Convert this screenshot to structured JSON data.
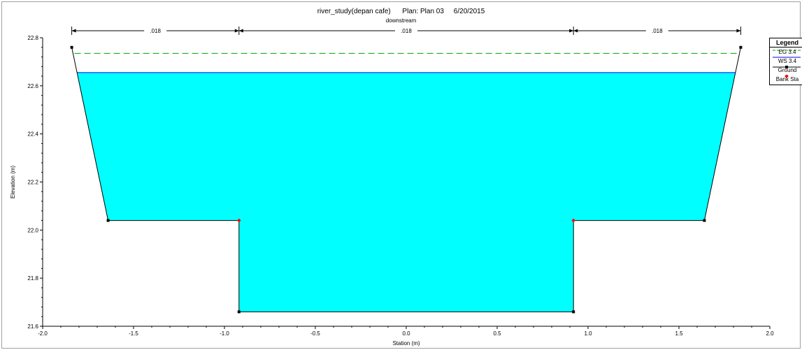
{
  "title_line": "river_study(depan cafe)      Plan: Plan 03     6/20/2015",
  "subtitle": "downstream",
  "chart_data": {
    "type": "line",
    "xlabel": "Station (m)",
    "ylabel": "Elevation (m)",
    "xlim": [
      -2.0,
      2.0
    ],
    "ylim": [
      21.6,
      22.8
    ],
    "x_ticks": [
      -2.0,
      -1.5,
      -1.0,
      -0.5,
      0.0,
      0.5,
      1.0,
      1.5,
      2.0
    ],
    "x_tick_labels": [
      "-2.0",
      "-1.5",
      "-1.0",
      "-0.5",
      "0.0",
      "0.5",
      "1.0",
      "1.5",
      "2.0"
    ],
    "y_ticks": [
      21.6,
      21.8,
      22.0,
      22.2,
      22.4,
      22.6,
      22.8
    ],
    "y_tick_labels": [
      "21.6",
      "21.8",
      "22.0",
      "22.2",
      "22.4",
      "22.6",
      "22.8"
    ],
    "grid": false,
    "legend_position": "right",
    "ground": {
      "x": [
        -1.84,
        -1.64,
        -0.92,
        -0.92,
        0.92,
        0.92,
        1.64,
        1.84
      ],
      "y": [
        22.76,
        22.04,
        22.04,
        21.66,
        21.66,
        22.04,
        22.04,
        22.76
      ]
    },
    "bank_stations": {
      "x": [
        -0.92,
        0.92
      ],
      "y": [
        22.04,
        22.04
      ]
    },
    "water_surface": 22.655,
    "energy_grade": 22.735,
    "mannings_n": [
      {
        "label": ".018",
        "from": -1.84,
        "to": -0.92
      },
      {
        "label": ".018",
        "from": -0.92,
        "to": 0.92
      },
      {
        "label": ".018",
        "from": 0.92,
        "to": 1.84
      }
    ],
    "series": [
      {
        "name": "EG 3.4",
        "color": "#00a000",
        "style": "dashed"
      },
      {
        "name": "WS 3.4",
        "color": "#0000ff",
        "style": "solid"
      },
      {
        "name": "Ground",
        "color": "#000000",
        "style": "solid-marker"
      },
      {
        "name": "Bank Sta",
        "color": "#ff0000",
        "style": "marker"
      }
    ]
  },
  "legend": {
    "title": "Legend",
    "items": [
      "EG 3.4",
      "WS 3.4",
      "Ground",
      "Bank Sta"
    ]
  },
  "colors": {
    "water_fill": "#00ffff",
    "energy_grade_line": "#00a000",
    "water_surface_line": "#0000ff",
    "ground_line": "#000000",
    "bank_station": "#ff0000"
  }
}
